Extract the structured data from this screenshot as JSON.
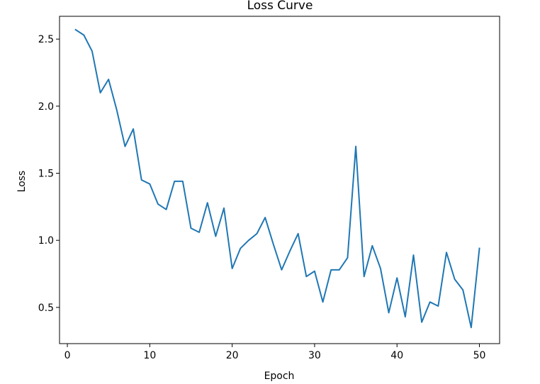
{
  "chart_data": {
    "type": "line",
    "title": "Loss Curve",
    "xlabel": "Epoch",
    "ylabel": "Loss",
    "xlim": [
      -0.95,
      52.45
    ],
    "ylim": [
      0.23,
      2.67
    ],
    "xticks": [
      0,
      10,
      20,
      30,
      40,
      50
    ],
    "yticks": [
      0.5,
      1.0,
      1.5,
      2.0,
      2.5
    ],
    "xtick_labels": [
      "0",
      "10",
      "20",
      "30",
      "40",
      "50"
    ],
    "ytick_labels": [
      "0.5",
      "1.0",
      "1.5",
      "2.0",
      "2.5"
    ],
    "grid": false,
    "colors": {
      "series": "#1f77b4",
      "frame": "#000000"
    },
    "series": [
      {
        "name": "",
        "x": [
          1,
          2,
          3,
          4,
          5,
          6,
          7,
          8,
          9,
          10,
          11,
          12,
          13,
          14,
          15,
          16,
          17,
          18,
          19,
          20,
          21,
          22,
          23,
          24,
          25,
          26,
          27,
          28,
          29,
          30,
          31,
          32,
          33,
          34,
          35,
          36,
          37,
          38,
          39,
          40,
          41,
          42,
          43,
          44,
          45,
          46,
          47,
          48,
          49,
          50
        ],
        "y": [
          2.57,
          2.53,
          2.41,
          2.1,
          2.2,
          1.97,
          1.7,
          1.83,
          1.45,
          1.42,
          1.27,
          1.23,
          1.44,
          1.44,
          1.09,
          1.06,
          1.28,
          1.03,
          1.24,
          0.79,
          0.94,
          1.0,
          1.05,
          1.17,
          0.97,
          0.78,
          0.92,
          1.05,
          0.73,
          0.77,
          0.54,
          0.78,
          0.78,
          0.87,
          1.7,
          0.73,
          0.96,
          0.79,
          0.46,
          0.72,
          0.43,
          0.89,
          0.39,
          0.54,
          0.51,
          0.91,
          0.71,
          0.63,
          0.35,
          0.94
        ]
      }
    ]
  }
}
